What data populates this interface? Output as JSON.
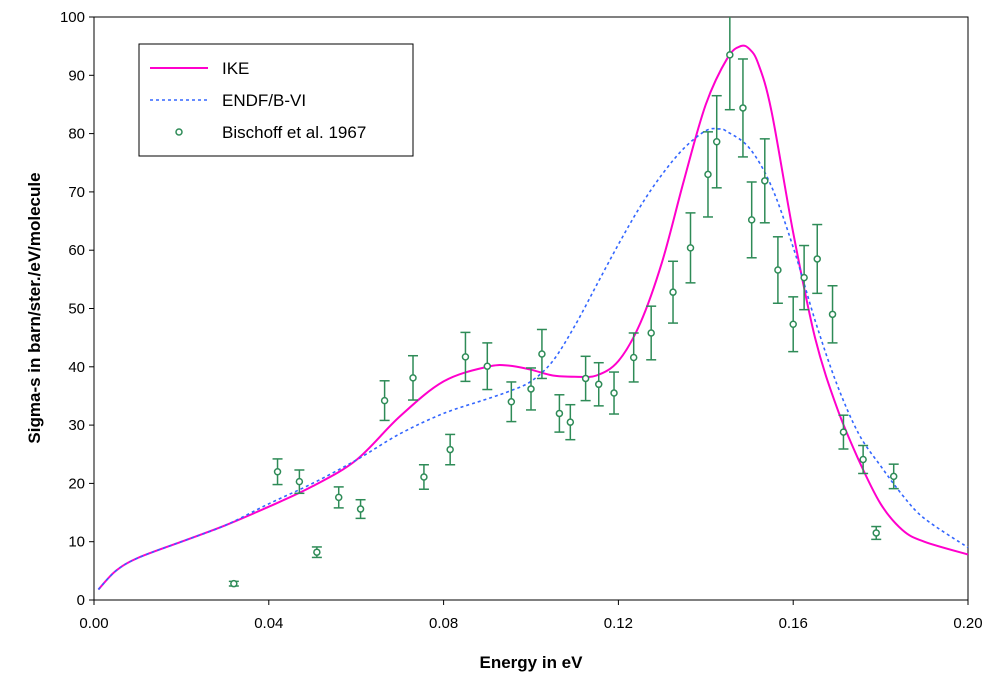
{
  "chart_data": {
    "type": "line",
    "xlabel": "Energy in eV",
    "ylabel": "Sigma-s in barn/ster./eV/molecule",
    "xlim": [
      0,
      0.2
    ],
    "ylim": [
      0,
      100
    ],
    "x_ticks": [
      "0.00",
      "0.04",
      "0.08",
      "0.12",
      "0.16",
      "0.20"
    ],
    "y_ticks": [
      "0",
      "10",
      "20",
      "30",
      "40",
      "50",
      "60",
      "70",
      "80",
      "90",
      "100"
    ],
    "grid": false,
    "legend_position": "top-left",
    "series": [
      {
        "name": "IKE",
        "style": "solid",
        "color": "#ff00cc",
        "x": [
          0.001,
          0.005,
          0.01,
          0.02,
          0.03,
          0.04,
          0.05,
          0.06,
          0.07,
          0.08,
          0.09,
          0.095,
          0.1,
          0.105,
          0.11,
          0.115,
          0.12,
          0.125,
          0.13,
          0.135,
          0.14,
          0.145,
          0.148,
          0.15,
          0.152,
          0.155,
          0.16,
          0.165,
          0.17,
          0.175,
          0.18,
          0.185,
          0.19,
          0.2
        ],
        "y": [
          1.8,
          5.0,
          7.2,
          10.0,
          12.8,
          16.0,
          19.5,
          24.0,
          31.5,
          37.5,
          40.0,
          40.2,
          39.5,
          38.5,
          38.3,
          38.5,
          41.0,
          47.5,
          58.0,
          72.0,
          85.0,
          93.0,
          95.0,
          94.5,
          92.0,
          84.0,
          63.0,
          45.0,
          33.0,
          24.0,
          16.5,
          12.0,
          10.0,
          7.8
        ]
      },
      {
        "name": "ENDF/B-VI",
        "style": "dashed",
        "color": "#3366ff",
        "x": [
          0.001,
          0.005,
          0.01,
          0.02,
          0.03,
          0.04,
          0.05,
          0.06,
          0.07,
          0.08,
          0.09,
          0.095,
          0.1,
          0.105,
          0.11,
          0.115,
          0.12,
          0.125,
          0.13,
          0.135,
          0.14,
          0.143,
          0.145,
          0.15,
          0.155,
          0.16,
          0.165,
          0.17,
          0.175,
          0.18,
          0.185,
          0.19,
          0.2
        ],
        "y": [
          1.8,
          5.0,
          7.2,
          10.0,
          12.8,
          16.5,
          20.0,
          24.0,
          28.5,
          32.0,
          34.5,
          35.8,
          37.5,
          41.0,
          47.0,
          54.0,
          61.0,
          67.5,
          73.0,
          77.5,
          80.5,
          80.8,
          80.3,
          77.5,
          71.0,
          60.5,
          48.0,
          37.0,
          28.5,
          23.0,
          18.0,
          14.0,
          9.0
        ]
      },
      {
        "name": "Bischoff et al. 1967",
        "style": "markers",
        "color": "#2e8b57",
        "x": [
          0.032,
          0.042,
          0.047,
          0.051,
          0.056,
          0.061,
          0.0665,
          0.073,
          0.0755,
          0.0815,
          0.085,
          0.09,
          0.0955,
          0.1,
          0.1025,
          0.1065,
          0.109,
          0.1125,
          0.1155,
          0.119,
          0.1235,
          0.1275,
          0.1325,
          0.1365,
          0.1405,
          0.1425,
          0.1455,
          0.1485,
          0.1505,
          0.1535,
          0.1565,
          0.16,
          0.1625,
          0.1655,
          0.169,
          0.1715,
          0.176,
          0.179,
          0.183
        ],
        "y": [
          2.8,
          22.0,
          20.3,
          8.2,
          17.6,
          15.6,
          34.2,
          38.1,
          21.1,
          25.8,
          41.7,
          40.1,
          34.0,
          36.2,
          42.2,
          32.0,
          30.5,
          38.0,
          37.0,
          35.5,
          41.6,
          45.8,
          52.8,
          60.4,
          73.0,
          78.6,
          93.5,
          84.4,
          65.2,
          71.9,
          56.6,
          47.3,
          55.3,
          58.5,
          49.0,
          28.8,
          24.1,
          11.5,
          21.2
        ],
        "err": [
          0.4,
          2.2,
          2.0,
          0.9,
          1.8,
          1.6,
          3.4,
          3.8,
          2.1,
          2.6,
          4.2,
          4.0,
          3.4,
          3.6,
          4.2,
          3.2,
          3.0,
          3.8,
          3.7,
          3.6,
          4.2,
          4.6,
          5.3,
          6.0,
          7.3,
          7.9,
          9.4,
          8.4,
          6.5,
          7.2,
          5.7,
          4.7,
          5.5,
          5.9,
          4.9,
          2.9,
          2.4,
          1.1,
          2.1
        ]
      }
    ]
  }
}
